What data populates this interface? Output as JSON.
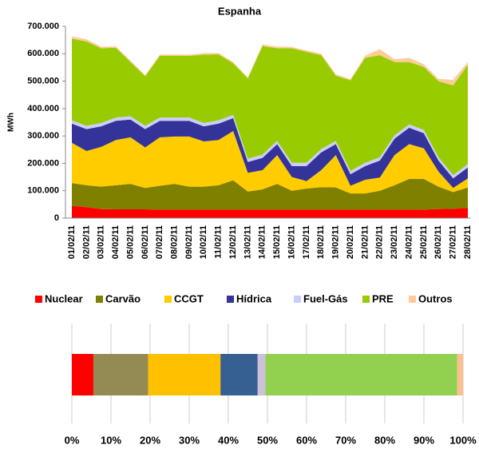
{
  "chart_data": [
    {
      "type": "stacked-area",
      "title": "Espanha",
      "y_label": "MWh",
      "categories": [
        "01/02/11",
        "02/02/11",
        "03/02/11",
        "04/02/11",
        "05/02/11",
        "06/02/11",
        "07/02/11",
        "08/02/11",
        "09/02/11",
        "10/02/11",
        "11/02/11",
        "12/02/11",
        "13/02/11",
        "14/02/11",
        "15/02/11",
        "16/02/11",
        "17/02/11",
        "18/02/11",
        "19/02/11",
        "20/02/11",
        "21/02/11",
        "22/02/11",
        "23/02/11",
        "24/02/11",
        "25/02/11",
        "26/02/11",
        "27/02/11",
        "28/02/11"
      ],
      "ylim": [
        0,
        700000
      ],
      "yticks": [
        0,
        {
          "value": 100000,
          "label": "100.000"
        },
        {
          "value": 200000,
          "label": "200.000"
        },
        {
          "value": 300000,
          "label": "300.000"
        },
        {
          "value": 400000,
          "label": "400.000"
        },
        {
          "value": 500000,
          "label": "500.000"
        },
        {
          "value": 600000,
          "label": "600.000"
        },
        {
          "value": 700000,
          "label": "700.000"
        }
      ],
      "grid": false,
      "series": [
        {
          "name": "Nuclear",
          "color": "#ff0000",
          "values": [
            45000,
            40000,
            33000,
            32000,
            32000,
            32000,
            31000,
            31000,
            31000,
            31000,
            31000,
            31000,
            31000,
            31000,
            31000,
            31000,
            31000,
            31000,
            31000,
            31000,
            31000,
            31000,
            31000,
            31000,
            31000,
            33000,
            34000,
            38000
          ]
        },
        {
          "name": "Carvão",
          "color": "#808000",
          "values": [
            83000,
            80000,
            82000,
            88000,
            93000,
            78000,
            87000,
            94000,
            84000,
            84000,
            89000,
            107000,
            66000,
            74000,
            94000,
            69000,
            77000,
            82000,
            81000,
            59000,
            59000,
            69000,
            89000,
            112000,
            112000,
            82000,
            61000,
            74000
          ]
        },
        {
          "name": "CCGT",
          "color": "#ffcc00",
          "values": [
            147000,
            125000,
            145000,
            165000,
            170000,
            148000,
            177000,
            173000,
            183000,
            165000,
            165000,
            180000,
            68000,
            70000,
            105000,
            50000,
            27000,
            62000,
            118000,
            28000,
            50000,
            48000,
            110000,
            127000,
            112000,
            55000,
            15000,
            33000
          ]
        },
        {
          "name": "Hídrica",
          "color": "#333399",
          "values": [
            70000,
            80000,
            75000,
            70000,
            65000,
            67000,
            60000,
            57000,
            57000,
            55000,
            60000,
            47000,
            40000,
            45000,
            40000,
            40000,
            55000,
            65000,
            40000,
            42000,
            50000,
            62000,
            60000,
            60000,
            55000,
            40000,
            35000,
            40000
          ]
        },
        {
          "name": "Fuel-Gás",
          "color": "#ccccff",
          "values": [
            12000,
            12000,
            12000,
            12000,
            12000,
            12000,
            12000,
            12000,
            12000,
            12000,
            12000,
            12000,
            12000,
            12000,
            12000,
            12000,
            12000,
            12000,
            12000,
            12000,
            12000,
            12000,
            12000,
            12000,
            12000,
            12000,
            12000,
            12000
          ]
        },
        {
          "name": "PRE",
          "color": "#99cc00",
          "values": [
            298000,
            308000,
            273000,
            255000,
            198000,
            181000,
            225000,
            225000,
            225000,
            250000,
            241000,
            188000,
            293000,
            396000,
            338000,
            418000,
            405000,
            343000,
            238000,
            331000,
            383000,
            373000,
            268000,
            228000,
            230000,
            278000,
            328000,
            363000
          ]
        },
        {
          "name": "Outros",
          "color": "#ffcc99",
          "values": [
            8000,
            8000,
            6000,
            5000,
            5000,
            4000,
            5000,
            5000,
            5000,
            5000,
            5000,
            5000,
            4000,
            6000,
            6000,
            5000,
            5000,
            5000,
            5000,
            4000,
            8000,
            22000,
            10000,
            15000,
            10000,
            8000,
            20000,
            10000
          ]
        }
      ]
    },
    {
      "type": "stacked-bar-100",
      "xlim": [
        0,
        100
      ],
      "xticks": [
        {
          "value": 0,
          "label": "0%"
        },
        {
          "value": 10,
          "label": "10%"
        },
        {
          "value": 20,
          "label": "20%"
        },
        {
          "value": 30,
          "label": "30%"
        },
        {
          "value": 40,
          "label": "40%"
        },
        {
          "value": 50,
          "label": "50%"
        },
        {
          "value": 60,
          "label": "60%"
        },
        {
          "value": 70,
          "label": "70%"
        },
        {
          "value": 80,
          "label": "80%"
        },
        {
          "value": 90,
          "label": "90%"
        },
        {
          "value": 100,
          "label": "100%"
        }
      ],
      "grid": true,
      "values": [
        5.5,
        14,
        18.5,
        9.5,
        2,
        49,
        1.5
      ],
      "colors": [
        "#ff0000",
        "#948a54",
        "#ffc000",
        "#366092",
        "#ccc0da",
        "#92d050",
        "#fac090"
      ]
    }
  ]
}
